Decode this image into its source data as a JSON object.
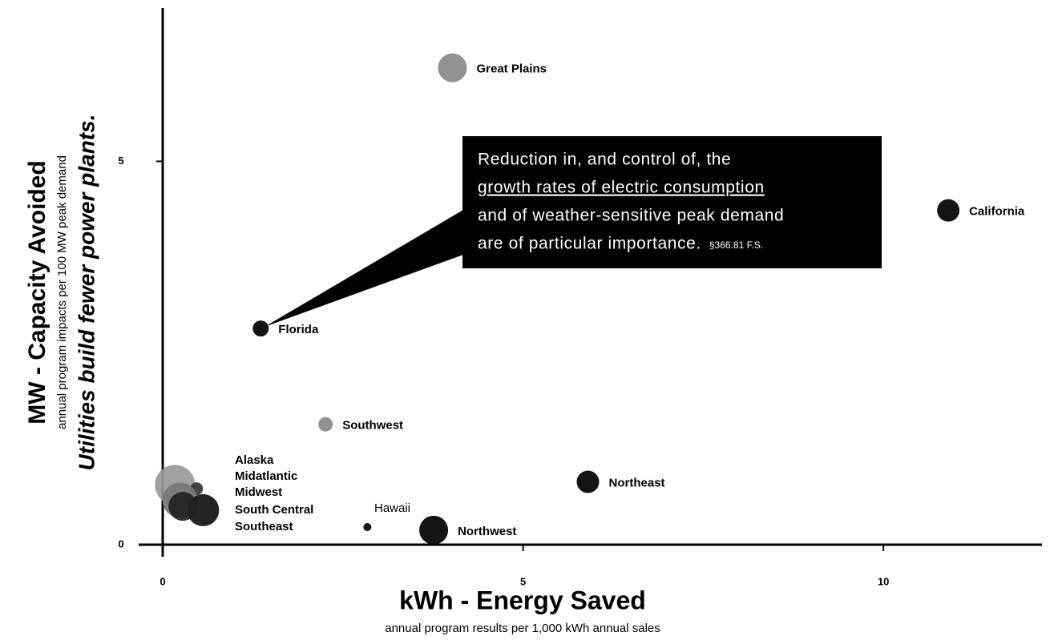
{
  "chart_data": {
    "type": "bubble",
    "ylabel": "MW - Capacity Avoided",
    "ylabel_sub": "annual program impacts per 100 MW peak demand",
    "ylabel_tagline": "Utilities build fewer power plants.",
    "xlabel": "kWh - Energy Saved",
    "xlabel_sub": "annual program results per 1,000 kWh annual sales",
    "xlim": [
      0,
      12.2
    ],
    "ylim": [
      0,
      7
    ],
    "xticks": [
      0,
      5,
      10
    ],
    "yticks": [
      0,
      5
    ],
    "points": [
      {
        "name": "Great Plains",
        "x": 4.02,
        "y": 6.22,
        "size": 18,
        "color": "#888888"
      },
      {
        "name": "California",
        "x": 10.9,
        "y": 4.36,
        "size": 14,
        "color": "#000000"
      },
      {
        "name": "Florida",
        "x": 1.36,
        "y": 2.82,
        "size": 10,
        "color": "#000000"
      },
      {
        "name": "Southwest",
        "x": 2.26,
        "y": 1.57,
        "size": 9,
        "color": "#888888"
      },
      {
        "name": "Northeast",
        "x": 5.9,
        "y": 0.82,
        "size": 14,
        "color": "#000000"
      },
      {
        "name": "Hawaii",
        "x": 2.84,
        "y": 0.23,
        "size": 5,
        "color": "#000000"
      },
      {
        "name": "Northwest",
        "x": 3.76,
        "y": 0.19,
        "size": 18,
        "color": "#000000"
      },
      {
        "name": "Alaska",
        "x": 0.17,
        "y": 0.78,
        "size": 25,
        "color": "#999999"
      },
      {
        "name": "Midatlantic",
        "x": 0.47,
        "y": 0.73,
        "size": 8,
        "color": "#333333"
      },
      {
        "name": "Midwest",
        "x": 0.24,
        "y": 0.58,
        "size": 22,
        "color": "#777777"
      },
      {
        "name": "South Central",
        "x": 0.56,
        "y": 0.45,
        "size": 20,
        "color": "#111111"
      },
      {
        "name": "Southeast",
        "x": 0.28,
        "y": 0.5,
        "size": 18,
        "color": "#222222"
      }
    ],
    "annotation": {
      "lines": [
        "Reduction in, and control of, the",
        "growth rates of electric consumption",
        "and of weather-sensitive peak demand",
        "are of particular importance."
      ],
      "citation": "§366.81 F.S."
    }
  }
}
